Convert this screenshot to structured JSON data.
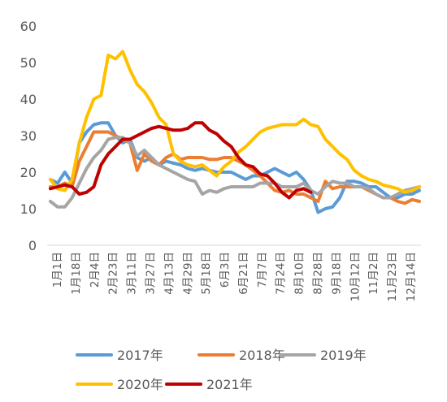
{
  "chart_data": {
    "type": "line",
    "title": "",
    "xlabel": "",
    "ylabel": "",
    "ylim": [
      0,
      60
    ],
    "yticks": [
      0,
      10,
      20,
      30,
      40,
      50,
      60
    ],
    "grid": false,
    "legend_position": "bottom",
    "x_tick_labels": [
      "1月1日",
      "1月18日",
      "2月4日",
      "2月23日",
      "3月11日",
      "3月27日",
      "4月13日",
      "4月29日",
      "5月18日",
      "6月3日",
      "6月21日",
      "7月7日",
      "7月24日",
      "8月10日",
      "8月28日",
      "9月18日",
      "10月12日",
      "11月2日",
      "11月23日",
      "12月14日"
    ],
    "x_count": 52,
    "series": [
      {
        "name": "2017年",
        "color": "#5B9BD5",
        "values": [
          18,
          17,
          20,
          17,
          28,
          31,
          33,
          33.5,
          33.5,
          30,
          28,
          29,
          24,
          23,
          24,
          22,
          23,
          22.5,
          22,
          21,
          20.5,
          21,
          20.5,
          20,
          20,
          20,
          19,
          18,
          19,
          19,
          20,
          21,
          20,
          19,
          20,
          18,
          15,
          9,
          10,
          10.5,
          13,
          17.5,
          17.5,
          17,
          16,
          16,
          14.5,
          13,
          13,
          14,
          14,
          15
        ]
      },
      {
        "name": "2018年",
        "color": "#ED7D31",
        "values": [
          16,
          16,
          17,
          16,
          23,
          27,
          31,
          31,
          31,
          30,
          29,
          28,
          20.5,
          25,
          23,
          22,
          24,
          25,
          23.5,
          24,
          24,
          24,
          23.5,
          23.5,
          24,
          24,
          23,
          22,
          20.5,
          19,
          17,
          15,
          14.5,
          15,
          14,
          14,
          13,
          12,
          17.5,
          15.5,
          16,
          16,
          16,
          16,
          15,
          14,
          13,
          13,
          12,
          11.5,
          12.5,
          12
        ]
      },
      {
        "name": "2019年",
        "color": "#A5A5A5",
        "values": [
          12,
          10.5,
          10.5,
          13,
          17,
          21,
          24,
          26,
          29,
          29.5,
          29.5,
          28,
          24.5,
          26,
          24,
          22,
          21,
          20,
          19,
          18,
          17.5,
          14,
          15,
          14.5,
          15.5,
          16,
          16,
          16,
          16,
          17,
          17,
          17,
          16,
          16,
          16,
          17,
          15,
          14,
          16,
          17.5,
          17,
          17,
          16,
          16,
          15.5,
          14,
          13,
          13,
          14,
          15,
          15.5,
          16
        ]
      },
      {
        "name": "2020年",
        "color": "#FFC000",
        "values": [
          18,
          15.5,
          15,
          18,
          28,
          35,
          40,
          41,
          52,
          51,
          53,
          48,
          44,
          42,
          39,
          35,
          33,
          25,
          23,
          22,
          21.5,
          22,
          20.5,
          19,
          21.5,
          23,
          25.5,
          27,
          29,
          31,
          32,
          32.5,
          33,
          33,
          33,
          34.5,
          33,
          32.5,
          29,
          27,
          25,
          23.5,
          20.5,
          19,
          18,
          17.5,
          16.5,
          16,
          15.5,
          14.5,
          15,
          16
        ]
      },
      {
        "name": "2021年",
        "color": "#C00000",
        "values": [
          15.5,
          16,
          16.5,
          16,
          14,
          14.5,
          16,
          22,
          25,
          27,
          29,
          29,
          30,
          31,
          32,
          32.5,
          32,
          31.5,
          31.5,
          32,
          33.5,
          33.5,
          31.5,
          30.5,
          28.5,
          27,
          24,
          22,
          21.5,
          19.5,
          19,
          17,
          14.5,
          13,
          15,
          15.5,
          14.5
        ]
      }
    ]
  },
  "legend": [
    {
      "label": "2017年",
      "color": "#5B9BD5"
    },
    {
      "label": "2018年",
      "color": "#ED7D31"
    },
    {
      "label": "2019年",
      "color": "#A5A5A5"
    },
    {
      "label": "2020年",
      "color": "#FFC000"
    },
    {
      "label": "2021年",
      "color": "#C00000"
    }
  ]
}
